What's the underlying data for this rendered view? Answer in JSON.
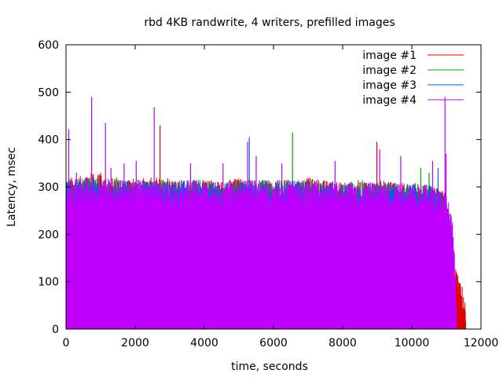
{
  "chart_data": {
    "type": "line",
    "title": "rbd 4KB randwrite, 4 writers, prefilled images",
    "xlabel": "time, seconds",
    "ylabel": "Latency, msec",
    "xlim": [
      0,
      12000
    ],
    "ylim": [
      0,
      600
    ],
    "xticks": [
      "0",
      "2000",
      "4000",
      "6000",
      "8000",
      "10000",
      "12000"
    ],
    "yticks": [
      "0",
      "100",
      "200",
      "300",
      "400",
      "500",
      "600"
    ],
    "grid": false,
    "legend": "top-right",
    "series": [
      {
        "name": "image #1",
        "color": "#e00000",
        "x": [
          0,
          500,
          1000,
          1500,
          2000,
          2500,
          3000,
          3500,
          4000,
          4500,
          5000,
          5500,
          6000,
          6500,
          7000,
          7500,
          8000,
          8500,
          9000,
          9500,
          10000,
          10500,
          11000,
          11300,
          11400,
          11500,
          11560
        ],
        "y": [
          290,
          295,
          300,
          285,
          290,
          290,
          290,
          285,
          285,
          285,
          290,
          285,
          285,
          285,
          290,
          285,
          280,
          285,
          285,
          280,
          280,
          275,
          260,
          90,
          70,
          55,
          20
        ],
        "spikes": [
          [
            730,
            330
          ],
          [
            2140,
            220
          ],
          [
            2250,
            220
          ],
          [
            2720,
            430
          ],
          [
            4120,
            200
          ],
          [
            4880,
            240
          ],
          [
            8990,
            395
          ],
          [
            9620,
            230
          ]
        ]
      },
      {
        "name": "image #2",
        "color": "#00a000",
        "x": [
          0,
          500,
          1000,
          1500,
          2000,
          2500,
          3000,
          3500,
          4000,
          4500,
          5000,
          5500,
          6000,
          6500,
          7000,
          7500,
          8000,
          8500,
          9000,
          9500,
          10000,
          10500,
          11000,
          11300
        ],
        "y": [
          285,
          290,
          290,
          285,
          285,
          285,
          285,
          285,
          285,
          280,
          285,
          285,
          285,
          285,
          285,
          280,
          280,
          280,
          280,
          280,
          275,
          275,
          255,
          10
        ],
        "spikes": [
          [
            1460,
            320
          ],
          [
            4630,
            230
          ],
          [
            6550,
            415
          ],
          [
            7060,
            150
          ],
          [
            7630,
            180
          ],
          [
            10260,
            340
          ],
          [
            10500,
            330
          ]
        ]
      },
      {
        "name": "image #3",
        "color": "#0060e0",
        "x": [
          0,
          500,
          1000,
          1500,
          2000,
          2500,
          3000,
          3500,
          4000,
          4500,
          5000,
          5500,
          6000,
          6500,
          7000,
          7500,
          8000,
          8500,
          9000,
          9500,
          10000,
          10500,
          11000,
          11300
        ],
        "y": [
          285,
          285,
          290,
          285,
          285,
          285,
          280,
          285,
          285,
          280,
          285,
          285,
          285,
          285,
          285,
          280,
          280,
          280,
          280,
          280,
          275,
          275,
          255,
          10
        ],
        "spikes": [
          [
            1080,
            210
          ],
          [
            4780,
            130
          ],
          [
            5300,
            405
          ],
          [
            8500,
            170
          ],
          [
            8880,
            250
          ],
          [
            10760,
            340
          ]
        ]
      },
      {
        "name": "image #4",
        "color": "#c000ff",
        "x": [
          0,
          500,
          1000,
          1500,
          2000,
          2500,
          3000,
          3500,
          4000,
          4500,
          5000,
          5500,
          6000,
          6500,
          7000,
          7500,
          8000,
          8500,
          9000,
          9500,
          10000,
          10500,
          11000,
          11200,
          11300
        ],
        "y": [
          285,
          290,
          290,
          285,
          285,
          285,
          285,
          285,
          285,
          280,
          285,
          285,
          285,
          285,
          285,
          280,
          280,
          280,
          280,
          280,
          280,
          275,
          260,
          190,
          10
        ],
        "spikes": [
          [
            80,
            422
          ],
          [
            300,
            330
          ],
          [
            740,
            490
          ],
          [
            1140,
            435
          ],
          [
            1300,
            340
          ],
          [
            1680,
            350
          ],
          [
            2030,
            355
          ],
          [
            2550,
            468
          ],
          [
            3600,
            350
          ],
          [
            4540,
            350
          ],
          [
            5250,
            395
          ],
          [
            5500,
            365
          ],
          [
            6240,
            350
          ],
          [
            7780,
            355
          ],
          [
            9070,
            380
          ],
          [
            9680,
            365
          ],
          [
            10600,
            355
          ],
          [
            10960,
            490
          ],
          [
            10990,
            370
          ]
        ]
      }
    ]
  }
}
